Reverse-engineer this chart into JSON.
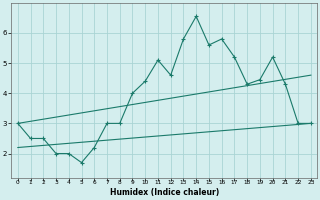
{
  "title": "",
  "xlabel": "Humidex (Indice chaleur)",
  "background_color": "#d4eeee",
  "grid_color": "#aad4d4",
  "line_color": "#1a7a6a",
  "xlim": [
    -0.5,
    23.5
  ],
  "ylim": [
    1.2,
    7.0
  ],
  "yticks": [
    2,
    3,
    4,
    5,
    6
  ],
  "xticks": [
    0,
    1,
    2,
    3,
    4,
    5,
    6,
    7,
    8,
    9,
    10,
    11,
    12,
    13,
    14,
    15,
    16,
    17,
    18,
    19,
    20,
    21,
    22,
    23
  ],
  "line1_x": [
    0,
    1,
    2,
    3,
    4,
    5,
    6,
    7,
    8,
    9,
    10,
    11,
    12,
    13,
    14,
    15,
    16,
    17,
    18,
    19,
    20,
    21,
    22,
    23
  ],
  "line1_y": [
    3.0,
    2.5,
    2.5,
    2.0,
    2.0,
    1.7,
    2.2,
    3.0,
    3.0,
    4.0,
    4.4,
    5.1,
    4.6,
    5.8,
    6.55,
    5.6,
    5.8,
    5.2,
    4.3,
    4.45,
    5.2,
    4.3,
    3.0,
    3.0
  ],
  "line2_x": [
    0,
    23
  ],
  "line2_y": [
    2.2,
    3.0
  ],
  "line3_x": [
    0,
    23
  ],
  "line3_y": [
    3.0,
    4.6
  ]
}
